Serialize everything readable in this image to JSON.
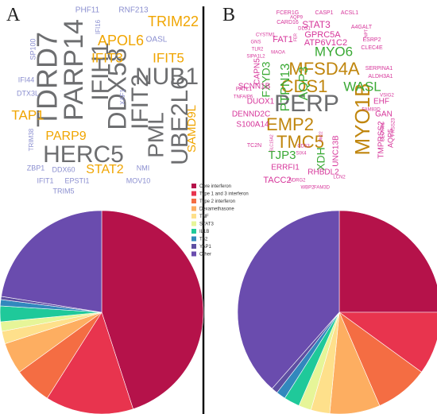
{
  "panels": [
    {
      "label": "A"
    },
    {
      "label": "B"
    }
  ],
  "legend": {
    "entries": [
      {
        "name": "Core interferon",
        "color": "#b5124a"
      },
      {
        "name": "Type 1 and 3 interferon",
        "color": "#e8344e"
      },
      {
        "name": "Type 2 interferon",
        "color": "#f46d43"
      },
      {
        "name": "Dexamethasone",
        "color": "#fdae61"
      },
      {
        "name": "TNF",
        "color": "#fee08b"
      },
      {
        "name": "STAT3",
        "color": "#e6f598"
      },
      {
        "name": "IL1B",
        "color": "#1fc99a"
      },
      {
        "name": "Th2",
        "color": "#3288bd"
      },
      {
        "name": "YAP1",
        "color": "#5e4fa2"
      },
      {
        "name": "Other",
        "color": "#6a4cae"
      }
    ]
  },
  "wordclouds": [
    {
      "panel": "A",
      "words": [
        {
          "text": "TDRD7",
          "color": "#6d6e70"
        },
        {
          "text": "PARP14",
          "color": "#6d6e70"
        },
        {
          "text": "IFIH1",
          "color": "#6d6e70"
        },
        {
          "text": "DDX58",
          "color": "#6d6e70"
        },
        {
          "text": "IFIT2",
          "color": "#6d6e70"
        },
        {
          "text": "PML",
          "color": "#6d6e70"
        },
        {
          "text": "UBE2L6",
          "color": "#6d6e70"
        },
        {
          "text": "NUB1",
          "color": "#6d6e70"
        },
        {
          "text": "HERC5",
          "color": "#6d6e70"
        },
        {
          "text": "TRIM22",
          "color": "#f0a500"
        },
        {
          "text": "APOL6",
          "color": "#f0a500"
        },
        {
          "text": "IFIT3",
          "color": "#f0a500"
        },
        {
          "text": "IFIT5",
          "color": "#f0a500"
        },
        {
          "text": "TAP1",
          "color": "#f0a500"
        },
        {
          "text": "PARP9",
          "color": "#f0a500"
        },
        {
          "text": "STAT2",
          "color": "#f0a500"
        },
        {
          "text": "SAMD9L",
          "color": "#f0a500"
        },
        {
          "text": "PHF11",
          "color": "#8b8fd0"
        },
        {
          "text": "RNF213",
          "color": "#8b8fd0"
        },
        {
          "text": "IFI16",
          "color": "#8b8fd0"
        },
        {
          "text": "OASL",
          "color": "#8b8fd0"
        },
        {
          "text": "SP100",
          "color": "#8b8fd0"
        },
        {
          "text": "IFI44",
          "color": "#8b8fd0"
        },
        {
          "text": "DTX3L",
          "color": "#8b8fd0"
        },
        {
          "text": "XAF1",
          "color": "#8b8fd0"
        },
        {
          "text": "TRIM38",
          "color": "#8b8fd0"
        },
        {
          "text": "ZBP1",
          "color": "#8b8fd0"
        },
        {
          "text": "DDX60",
          "color": "#8b8fd0"
        },
        {
          "text": "NMI",
          "color": "#8b8fd0"
        },
        {
          "text": "IFIT1",
          "color": "#8b8fd0"
        },
        {
          "text": "EPSTI1",
          "color": "#8b8fd0"
        },
        {
          "text": "MOV10",
          "color": "#8b8fd0"
        },
        {
          "text": "TRIM5",
          "color": "#8b8fd0"
        }
      ]
    },
    {
      "panel": "B",
      "words": [
        {
          "text": "PERP",
          "color": "#6d6e70"
        },
        {
          "text": "MFSD4A",
          "color": "#c0860e"
        },
        {
          "text": "CDS1",
          "color": "#c0860e"
        },
        {
          "text": "EMP2",
          "color": "#c0860e"
        },
        {
          "text": "TMC5",
          "color": "#c0860e"
        },
        {
          "text": "MYO1B",
          "color": "#c0860e"
        },
        {
          "text": "MYO6",
          "color": "#3aa935"
        },
        {
          "text": "WASL",
          "color": "#3aa935"
        },
        {
          "text": "PTPN13",
          "color": "#3aa935"
        },
        {
          "text": "AQP3",
          "color": "#3aa935"
        },
        {
          "text": "FXYD3",
          "color": "#3aa935"
        },
        {
          "text": "TJP3",
          "color": "#3aa935"
        },
        {
          "text": "XDH",
          "color": "#3aa935"
        },
        {
          "text": "STAT3",
          "color": "#d6359a"
        },
        {
          "text": "GPRC5A",
          "color": "#d6359a"
        },
        {
          "text": "FAT1",
          "color": "#d6359a"
        },
        {
          "text": "ATP6V1C2",
          "color": "#d6359a"
        },
        {
          "text": "CAPN5",
          "color": "#d6359a"
        },
        {
          "text": "SCNN1B",
          "color": "#d6359a"
        },
        {
          "text": "DUOX1",
          "color": "#d6359a"
        },
        {
          "text": "DENND2C",
          "color": "#d6359a"
        },
        {
          "text": "S100A14",
          "color": "#d6359a"
        },
        {
          "text": "TACC2",
          "color": "#d6359a"
        },
        {
          "text": "ERRFI1",
          "color": "#d6359a"
        },
        {
          "text": "RHBDL2",
          "color": "#d6359a"
        },
        {
          "text": "UNC13B",
          "color": "#d6359a"
        },
        {
          "text": "TMPRSS2",
          "color": "#d6359a"
        },
        {
          "text": "AQP5",
          "color": "#d6359a"
        },
        {
          "text": "EHF",
          "color": "#d6359a"
        },
        {
          "text": "GAN",
          "color": "#d6359a"
        },
        {
          "text": "FCER1G",
          "color": "#d6359a"
        },
        {
          "text": "CASP1",
          "color": "#d6359a"
        },
        {
          "text": "ACSL1",
          "color": "#d6359a"
        },
        {
          "text": "CARD16",
          "color": "#d6359a"
        },
        {
          "text": "AQP9",
          "color": "#d6359a"
        },
        {
          "text": "DLG1",
          "color": "#d6359a"
        },
        {
          "text": "A4GALT",
          "color": "#d6359a"
        },
        {
          "text": "ESRP2",
          "color": "#d6359a"
        },
        {
          "text": "CLEC4E",
          "color": "#d6359a"
        },
        {
          "text": "CYSTM1",
          "color": "#d6359a"
        },
        {
          "text": "GNS",
          "color": "#d6359a"
        },
        {
          "text": "TLR2",
          "color": "#d6359a"
        },
        {
          "text": "SIPA1L2",
          "color": "#d6359a"
        },
        {
          "text": "MAOA",
          "color": "#d6359a"
        },
        {
          "text": "SERPINA1",
          "color": "#d6359a"
        },
        {
          "text": "ALDH3A1",
          "color": "#d6359a"
        },
        {
          "text": "PATL1",
          "color": "#d6359a"
        },
        {
          "text": "TNFAIP6",
          "color": "#d6359a"
        },
        {
          "text": "VSIG2",
          "color": "#d6359a"
        },
        {
          "text": "SECTM1",
          "color": "#d6359a"
        },
        {
          "text": "PRSS23",
          "color": "#d6359a"
        },
        {
          "text": "FAM83D",
          "color": "#d6359a"
        },
        {
          "text": "TC2N",
          "color": "#d6359a"
        },
        {
          "text": "CD53",
          "color": "#d6359a"
        },
        {
          "text": "SIX4",
          "color": "#d6359a"
        },
        {
          "text": "NDRG2",
          "color": "#d6359a"
        },
        {
          "text": "WBP2",
          "color": "#d6359a"
        },
        {
          "text": "FAM3D",
          "color": "#d6359a"
        },
        {
          "text": "LCN2",
          "color": "#d6359a"
        },
        {
          "text": "SLC15A2",
          "color": "#d6359a"
        },
        {
          "text": "UM22",
          "color": "#d6359a"
        },
        {
          "text": "FER",
          "color": "#d6359a"
        },
        {
          "text": "NPT",
          "color": "#d6359a"
        }
      ]
    }
  ],
  "chart_data": [
    {
      "type": "pie",
      "panel": "A",
      "categories": [
        "Core interferon",
        "Type 1 and 3 interferon",
        "Type 2 interferon",
        "Dexamethasone",
        "TNF",
        "STAT3",
        "IL1B",
        "Th2",
        "YAP1",
        "Other"
      ],
      "values": [
        45.0,
        14.0,
        6.0,
        5.0,
        2.0,
        1.5,
        2.5,
        1.0,
        0.5,
        22.5
      ]
    },
    {
      "type": "pie",
      "panel": "B",
      "categories": [
        "Core interferon",
        "Type 1 and 3 interferon",
        "Type 2 interferon",
        "Dexamethasone",
        "TNF",
        "STAT3",
        "IL1B",
        "Th2",
        "YAP1",
        "Other"
      ],
      "values": [
        25.0,
        10.0,
        8.5,
        8.0,
        3.0,
        2.0,
        2.5,
        1.5,
        1.0,
        38.5
      ]
    }
  ]
}
